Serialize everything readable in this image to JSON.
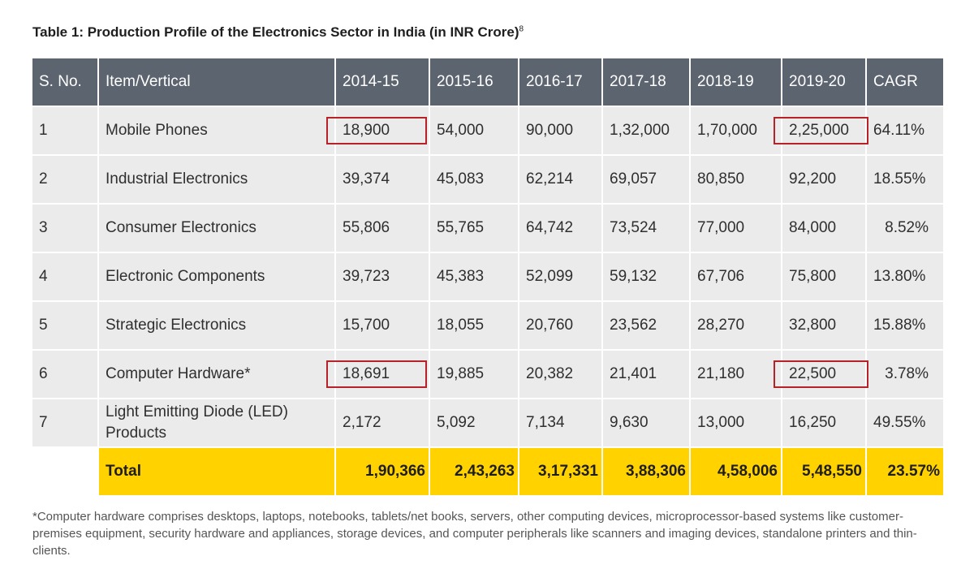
{
  "title": {
    "text": "Table 1: Production Profile of the Electronics Sector in India (in INR Crore)",
    "footnote_ref": "8"
  },
  "table": {
    "headers": [
      "S. No.",
      "Item/Vertical",
      "2014-15",
      "2015-16",
      "2016-17",
      "2017-18",
      "2018-19",
      "2019-20",
      "CAGR"
    ],
    "rows": [
      {
        "sno": "1",
        "item": "Mobile Phones",
        "values": [
          "18,900",
          "54,000",
          "90,000",
          "1,32,000",
          "1,70,000",
          "2,25,000"
        ],
        "cagr": "64.11%"
      },
      {
        "sno": "2",
        "item": "Industrial Electronics",
        "values": [
          "39,374",
          "45,083",
          "62,214",
          "69,057",
          "80,850",
          "92,200"
        ],
        "cagr": "18.55%"
      },
      {
        "sno": "3",
        "item": "Consumer Electronics",
        "values": [
          "55,806",
          "55,765",
          "64,742",
          "73,524",
          "77,000",
          "84,000"
        ],
        "cagr": "8.52%"
      },
      {
        "sno": "4",
        "item": "Electronic Components",
        "values": [
          "39,723",
          "45,383",
          "52,099",
          "59,132",
          "67,706",
          "75,800"
        ],
        "cagr": "13.80%"
      },
      {
        "sno": "5",
        "item": "Strategic Electronics",
        "values": [
          "15,700",
          "18,055",
          "20,760",
          "23,562",
          "28,270",
          "32,800"
        ],
        "cagr": "15.88%"
      },
      {
        "sno": "6",
        "item": "Computer Hardware*",
        "values": [
          "18,691",
          "19,885",
          "20,382",
          "21,401",
          "21,180",
          "22,500"
        ],
        "cagr": "3.78%"
      },
      {
        "sno": "7",
        "item": "Light Emitting Diode (LED) Products",
        "values": [
          "2,172",
          "5,092",
          "7,134",
          "9,630",
          "13,000",
          "16,250"
        ],
        "cagr": "49.55%"
      }
    ],
    "total": {
      "label": "Total",
      "values": [
        "1,90,366",
        "2,43,263",
        "3,17,331",
        "3,88,306",
        "4,58,006",
        "5,48,550"
      ],
      "cagr": "23.57%"
    },
    "highlight_color": "#b52228",
    "header_bg": "#5c6470",
    "total_bg": "#ffd200"
  },
  "footnote": "*Computer hardware comprises desktops, laptops, notebooks, tablets/net books, servers, other computing devices, microprocessor-based systems like customer-premises equipment, security hardware and appliances, storage devices, and computer peripherals like scanners and imaging devices, standalone printers and thin-clients."
}
